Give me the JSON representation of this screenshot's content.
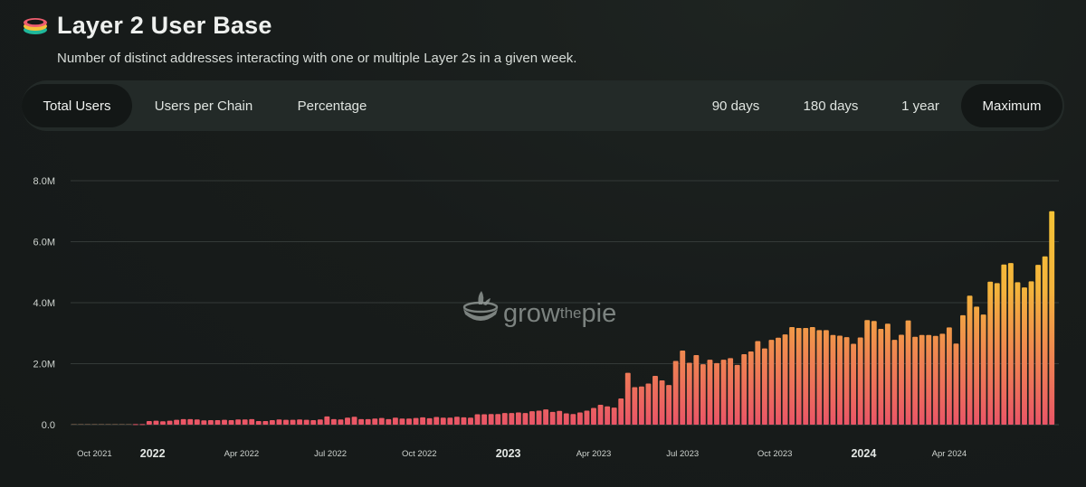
{
  "header": {
    "logo_icon": "layer-stack-icon",
    "title": "Layer 2 User Base",
    "subtitle": "Number of distinct addresses interacting with one or multiple Layer 2s in a given week."
  },
  "controls": {
    "metric_tabs": [
      {
        "label": "Total Users",
        "active": true
      },
      {
        "label": "Users per Chain",
        "active": false
      },
      {
        "label": "Percentage",
        "active": false
      }
    ],
    "range_tabs": [
      {
        "label": "90 days",
        "active": false
      },
      {
        "label": "180 days",
        "active": false
      },
      {
        "label": "1 year",
        "active": false
      },
      {
        "label": "Maximum",
        "active": true
      }
    ]
  },
  "watermark": {
    "prefix": "grow",
    "middle": "the",
    "suffix": "pie"
  },
  "colors": {
    "bar_top": "#f6c933",
    "bar_bottom": "#ea5567",
    "grid": "#343a38",
    "accent": "#f6c933"
  },
  "chart_data": {
    "type": "bar",
    "title": "Layer 2 User Base",
    "xlabel": "",
    "ylabel": "",
    "ylim": [
      0,
      8000000
    ],
    "yticks": [
      {
        "value": 0,
        "label": "0.0"
      },
      {
        "value": 2000000,
        "label": "2.0M"
      },
      {
        "value": 4000000,
        "label": "4.0M"
      },
      {
        "value": 6000000,
        "label": "6.0M"
      },
      {
        "value": 8000000,
        "label": "8.0M"
      }
    ],
    "xticks": [
      {
        "label": "Oct 2021",
        "position": 3,
        "major": false
      },
      {
        "label": "2022",
        "position": 11.5,
        "major": true
      },
      {
        "label": "Apr 2022",
        "position": 24.5,
        "major": false
      },
      {
        "label": "Jul 2022",
        "position": 37.5,
        "major": false
      },
      {
        "label": "Oct 2022",
        "position": 50.5,
        "major": false
      },
      {
        "label": "2023",
        "position": 63.5,
        "major": true
      },
      {
        "label": "Apr 2023",
        "position": 76,
        "major": false
      },
      {
        "label": "Jul 2023",
        "position": 89,
        "major": false
      },
      {
        "label": "Oct 2023",
        "position": 102.5,
        "major": false
      },
      {
        "label": "2024",
        "position": 115.5,
        "major": true
      },
      {
        "label": "Apr 2024",
        "position": 128,
        "major": false
      }
    ],
    "grid": true,
    "values": [
      0,
      0,
      0,
      0,
      0,
      0,
      0,
      0,
      0,
      20000,
      20000,
      120000,
      130000,
      110000,
      130000,
      160000,
      180000,
      180000,
      170000,
      140000,
      150000,
      150000,
      160000,
      150000,
      170000,
      170000,
      180000,
      120000,
      120000,
      150000,
      170000,
      160000,
      160000,
      170000,
      160000,
      150000,
      170000,
      270000,
      180000,
      170000,
      230000,
      260000,
      180000,
      180000,
      200000,
      220000,
      180000,
      230000,
      200000,
      200000,
      220000,
      240000,
      210000,
      250000,
      230000,
      230000,
      260000,
      240000,
      230000,
      340000,
      340000,
      350000,
      350000,
      380000,
      380000,
      400000,
      380000,
      440000,
      460000,
      500000,
      420000,
      450000,
      370000,
      350000,
      400000,
      460000,
      550000,
      650000,
      600000,
      560000,
      860000,
      1700000,
      1230000,
      1250000,
      1350000,
      1600000,
      1450000,
      1300000,
      2090000,
      2430000,
      2030000,
      2280000,
      1980000,
      2130000,
      2020000,
      2130000,
      2180000,
      1960000,
      2310000,
      2400000,
      2740000,
      2500000,
      2780000,
      2850000,
      2960000,
      3200000,
      3170000,
      3170000,
      3200000,
      3100000,
      3100000,
      2940000,
      2920000,
      2870000,
      2650000,
      2860000,
      3430000,
      3400000,
      3140000,
      3310000,
      2780000,
      2950000,
      3420000,
      2880000,
      2940000,
      2940000,
      2910000,
      2980000,
      3190000,
      2660000,
      3590000,
      4230000,
      3870000,
      3610000,
      4690000,
      4640000,
      5250000,
      5300000,
      4670000,
      4500000,
      4700000,
      5240000,
      5520000,
      7000000
    ]
  }
}
